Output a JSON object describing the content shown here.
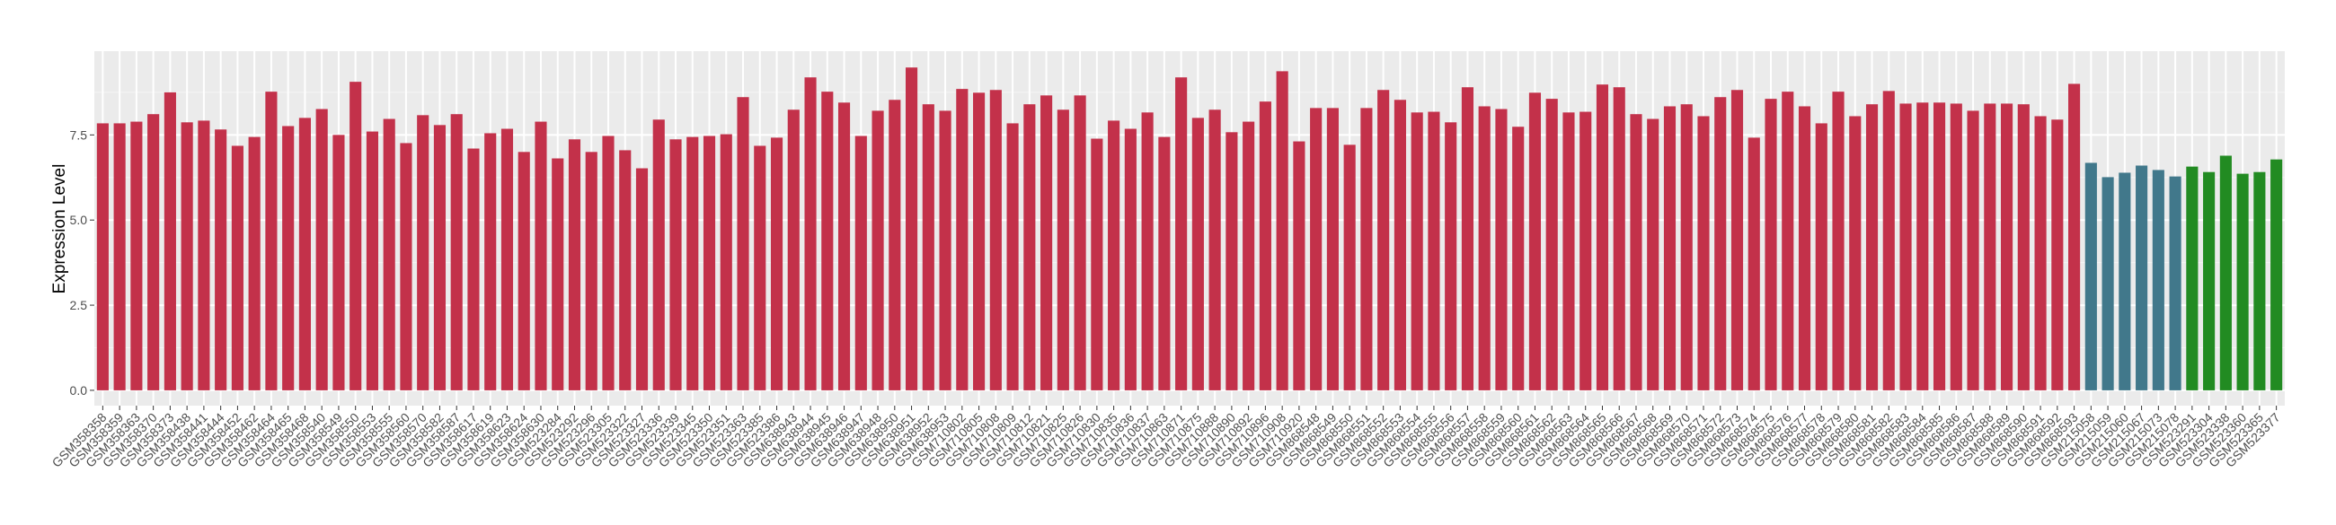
{
  "chart_data": {
    "type": "bar",
    "title": "",
    "xlabel": "",
    "ylabel": "Expression Level",
    "ylim": [
      -0.45,
      9.96
    ],
    "yticks": [
      "0.0",
      "2.5",
      "5.0",
      "7.5"
    ],
    "ytick_values": [
      0,
      2.5,
      5.0,
      7.5
    ],
    "grid": true,
    "legend": "none",
    "background": "#EBEBEB",
    "color_groups": [
      {
        "count": 118,
        "color": "#C3314A"
      },
      {
        "count": 6,
        "color": "#41788B"
      },
      {
        "count": 6,
        "color": "#228B22"
      }
    ],
    "categories": [
      "GSM358358",
      "GSM358359",
      "GSM358363",
      "GSM358370",
      "GSM358373",
      "GSM358438",
      "GSM358441",
      "GSM358444",
      "GSM358452",
      "GSM358462",
      "GSM358464",
      "GSM358465",
      "GSM358468",
      "GSM358540",
      "GSM358549",
      "GSM358550",
      "GSM358553",
      "GSM358555",
      "GSM358560",
      "GSM358570",
      "GSM358582",
      "GSM358587",
      "GSM358617",
      "GSM358619",
      "GSM358623",
      "GSM358624",
      "GSM358630",
      "GSM523284",
      "GSM523292",
      "GSM523296",
      "GSM523305",
      "GSM523322",
      "GSM523327",
      "GSM523336",
      "GSM523339",
      "GSM523345",
      "GSM523350",
      "GSM523351",
      "GSM523363",
      "GSM523385",
      "GSM523386",
      "GSM638943",
      "GSM638944",
      "GSM638945",
      "GSM638946",
      "GSM638947",
      "GSM638948",
      "GSM638950",
      "GSM638951",
      "GSM638952",
      "GSM638953",
      "GSM710802",
      "GSM710805",
      "GSM710808",
      "GSM710809",
      "GSM710812",
      "GSM710821",
      "GSM710825",
      "GSM710826",
      "GSM710830",
      "GSM710835",
      "GSM710836",
      "GSM710837",
      "GSM710863",
      "GSM710871",
      "GSM710875",
      "GSM710888",
      "GSM710890",
      "GSM710892",
      "GSM710896",
      "GSM710908",
      "GSM710920",
      "GSM868548",
      "GSM868549",
      "GSM868550",
      "GSM868551",
      "GSM868552",
      "GSM868553",
      "GSM868554",
      "GSM868555",
      "GSM868556",
      "GSM868557",
      "GSM868558",
      "GSM868559",
      "GSM868560",
      "GSM868561",
      "GSM868562",
      "GSM868563",
      "GSM868564",
      "GSM868565",
      "GSM868566",
      "GSM868567",
      "GSM868568",
      "GSM868569",
      "GSM868570",
      "GSM868571",
      "GSM868572",
      "GSM868573",
      "GSM868574",
      "GSM868575",
      "GSM868576",
      "GSM868577",
      "GSM868578",
      "GSM868579",
      "GSM868580",
      "GSM868581",
      "GSM868582",
      "GSM868583",
      "GSM868584",
      "GSM868585",
      "GSM868586",
      "GSM868587",
      "GSM868588",
      "GSM868589",
      "GSM868590",
      "GSM868591",
      "GSM868592",
      "GSM868593",
      "GSM215058",
      "GSM215059",
      "GSM215060",
      "GSM215067",
      "GSM215073",
      "GSM215078",
      "GSM523291",
      "GSM523304",
      "GSM523338",
      "GSM523360",
      "GSM523365",
      "GSM523377"
    ],
    "values": [
      7.84,
      7.84,
      7.89,
      8.11,
      8.75,
      7.87,
      7.92,
      7.66,
      7.18,
      7.44,
      8.77,
      7.76,
      8.0,
      8.26,
      7.5,
      9.06,
      7.6,
      7.97,
      7.26,
      8.08,
      7.79,
      8.11,
      7.1,
      7.55,
      7.68,
      7.0,
      7.89,
      6.81,
      7.37,
      7.0,
      7.47,
      7.05,
      6.52,
      7.95,
      7.37,
      7.44,
      7.47,
      7.52,
      8.61,
      7.18,
      7.42,
      8.24,
      9.19,
      8.77,
      8.45,
      7.47,
      8.21,
      8.53,
      9.48,
      8.4,
      8.21,
      8.85,
      8.74,
      8.82,
      7.84,
      8.4,
      8.66,
      8.24,
      8.66,
      7.39,
      7.92,
      7.68,
      8.16,
      7.44,
      9.19,
      8.0,
      8.24,
      7.58,
      7.89,
      8.48,
      9.37,
      7.31,
      8.29,
      8.29,
      7.21,
      8.29,
      8.82,
      8.53,
      8.16,
      8.18,
      7.87,
      8.9,
      8.34,
      8.26,
      7.74,
      8.74,
      8.56,
      8.16,
      8.18,
      8.98,
      8.9,
      8.11,
      7.97,
      8.34,
      8.4,
      8.05,
      8.61,
      8.82,
      7.42,
      8.56,
      8.77,
      8.34,
      7.84,
      8.77,
      8.05,
      8.4,
      8.79,
      8.42,
      8.45,
      8.45,
      8.42,
      8.21,
      8.42,
      8.42,
      8.4,
      8.05,
      7.95,
      9.0,
      6.68,
      6.26,
      6.39,
      6.6,
      6.47,
      6.28,
      6.57,
      6.41,
      6.89,
      6.36,
      6.41,
      6.78
    ]
  }
}
